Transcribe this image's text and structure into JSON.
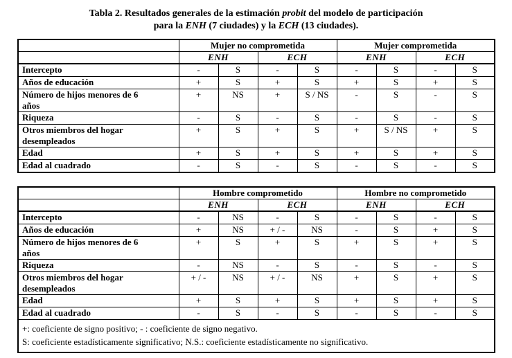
{
  "title": {
    "line1": [
      "Tabla 2. Resultados generales de la estimación ",
      "probit",
      " del modelo de participación"
    ],
    "line2": [
      "para la ",
      "ENH",
      " (7 ciudades) y la ",
      "ECH",
      " (13 ciudades)."
    ]
  },
  "tables": [
    {
      "name": "Mujer",
      "group_headers": [
        "Mujer no comprometida",
        "Mujer comprometida"
      ],
      "survey_headers": [
        "ENH",
        "ECH",
        "ENH",
        "ECH"
      ],
      "rows": [
        {
          "label_lines": [
            "Intercepto"
          ],
          "cells": [
            "-",
            "S",
            "-",
            "S",
            "-",
            "S",
            "-",
            "S"
          ]
        },
        {
          "label_lines": [
            "Años de educación"
          ],
          "cells": [
            "+",
            "S",
            "+",
            "S",
            "+",
            "S",
            "+",
            "S"
          ]
        },
        {
          "label_lines": [
            "Número de hijos menores de 6",
            "años"
          ],
          "cells": [
            "+",
            "NS",
            "+",
            "S / NS",
            "-",
            "S",
            "-",
            "S"
          ]
        },
        {
          "label_lines": [
            "Riqueza"
          ],
          "cells": [
            "-",
            "S",
            "-",
            "S",
            "-",
            "S",
            "-",
            "S"
          ]
        },
        {
          "label_lines": [
            "Otros miembros del hogar",
            "desempleados"
          ],
          "cells": [
            "+",
            "S",
            "+",
            "S",
            "+",
            "S / NS",
            "+",
            "S"
          ]
        },
        {
          "label_lines": [
            "Edad"
          ],
          "cells": [
            "+",
            "S",
            "+",
            "S",
            "+",
            "S",
            "+",
            "S"
          ]
        },
        {
          "label_lines": [
            "Edad al cuadrado"
          ],
          "cells": [
            "-",
            "S",
            "-",
            "S",
            "-",
            "S",
            "-",
            "S"
          ]
        }
      ],
      "footnotes": []
    },
    {
      "name": "Hombre",
      "group_headers": [
        "Hombre comprometido",
        "Hombre no comprometido"
      ],
      "survey_headers": [
        "ENH",
        "ECH",
        "ENH",
        "ECH"
      ],
      "rows": [
        {
          "label_lines": [
            "Intercepto"
          ],
          "cells": [
            "-",
            "NS",
            "-",
            "S",
            "-",
            "S",
            "-",
            "S"
          ]
        },
        {
          "label_lines": [
            "Años de educación"
          ],
          "cells": [
            "+",
            "NS",
            "+ / -",
            "NS",
            "-",
            "S",
            "+",
            "S"
          ]
        },
        {
          "label_lines": [
            "Número de hijos menores de 6",
            "años"
          ],
          "cells": [
            "+",
            "S",
            "+",
            "S",
            "+",
            "S",
            "+",
            "S"
          ]
        },
        {
          "label_lines": [
            "Riqueza"
          ],
          "cells": [
            "-",
            "NS",
            "-",
            "S",
            "-",
            "S",
            "-",
            "S"
          ]
        },
        {
          "label_lines": [
            "Otros miembros del hogar",
            "desempleados"
          ],
          "cells": [
            "+ / -",
            "NS",
            "+ / -",
            "NS",
            "+",
            "S",
            "+",
            "S"
          ]
        },
        {
          "label_lines": [
            "Edad"
          ],
          "cells": [
            "+",
            "S",
            "+",
            "S",
            "+",
            "S",
            "+",
            "S"
          ]
        },
        {
          "label_lines": [
            "Edad al cuadrado"
          ],
          "cells": [
            "-",
            "S",
            "-",
            "S",
            "-",
            "S",
            "-",
            "S"
          ]
        }
      ],
      "footnotes": [
        "+: coeficiente de signo positivo; - : coeficiente de signo negativo.",
        "S: coeficiente estadísticamente significativo; N.S.: coeficiente estadísticamente no significativo."
      ]
    }
  ]
}
